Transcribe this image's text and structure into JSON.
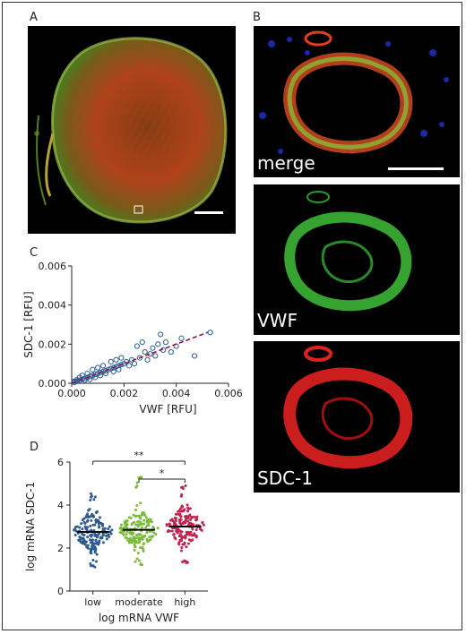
{
  "panels": {
    "a": {
      "label": "A"
    },
    "b": {
      "label": "B",
      "channels": [
        "merge",
        "VWF",
        "SDC-1"
      ]
    },
    "c": {
      "label": "C"
    },
    "d": {
      "label": "D"
    }
  },
  "chart_data": [
    {
      "panel": "C",
      "type": "scatter",
      "xlabel": "VWF [RFU]",
      "ylabel": "SDC-1 [RFU]",
      "xlim": [
        0,
        0.006
      ],
      "ylim": [
        0,
        0.006
      ],
      "xticks": [
        "0.000",
        "0.002",
        "0.004",
        "0.006"
      ],
      "yticks": [
        "0.000",
        "0.002",
        "0.004",
        "0.006"
      ],
      "fit_line": {
        "x": [
          0.0,
          0.0052
        ],
        "y": [
          0.0,
          0.0026
        ]
      },
      "points": [
        [
          0.0001,
          5e-05
        ],
        [
          0.0002,
          0.0001
        ],
        [
          0.0003,
          0.00015
        ],
        [
          0.0004,
          0.0002
        ],
        [
          0.0005,
          0.00025
        ],
        [
          0.0006,
          0.0003
        ],
        [
          0.0007,
          0.00035
        ],
        [
          0.0008,
          0.0004
        ],
        [
          0.0009,
          0.00045
        ],
        [
          0.001,
          0.0005
        ],
        [
          0.0011,
          0.00055
        ],
        [
          0.0012,
          0.0006
        ],
        [
          0.0013,
          0.00065
        ],
        [
          0.0014,
          0.0007
        ],
        [
          0.0015,
          0.00075
        ],
        [
          0.0016,
          0.0008
        ],
        [
          0.0017,
          0.00085
        ],
        [
          0.0018,
          0.0009
        ],
        [
          0.0019,
          0.00095
        ],
        [
          0.002,
          0.001
        ],
        [
          0.0004,
          0.0004
        ],
        [
          0.0006,
          0.0005
        ],
        [
          0.0008,
          0.0007
        ],
        [
          0.001,
          0.0008
        ],
        [
          0.0012,
          0.0009
        ],
        [
          0.0005,
          0.00015
        ],
        [
          0.0007,
          0.0002
        ],
        [
          0.0009,
          0.0003
        ],
        [
          0.0011,
          0.0004
        ],
        [
          0.0013,
          0.0005
        ],
        [
          0.0015,
          0.0011
        ],
        [
          0.0017,
          0.0012
        ],
        [
          0.0019,
          0.0013
        ],
        [
          0.0021,
          0.0011
        ],
        [
          0.0023,
          0.0012
        ],
        [
          0.0022,
          0.0009
        ],
        [
          0.0024,
          0.001
        ],
        [
          0.0026,
          0.0013
        ],
        [
          0.0028,
          0.0016
        ],
        [
          0.003,
          0.0015
        ],
        [
          0.0025,
          0.0019
        ],
        [
          0.0027,
          0.0021
        ],
        [
          0.0031,
          0.0018
        ],
        [
          0.0033,
          0.002
        ],
        [
          0.0035,
          0.0017
        ],
        [
          0.0029,
          0.0012
        ],
        [
          0.0032,
          0.0014
        ],
        [
          0.0036,
          0.0021
        ],
        [
          0.0038,
          0.0016
        ],
        [
          0.0034,
          0.0025
        ],
        [
          0.004,
          0.0019
        ],
        [
          0.0042,
          0.0023
        ],
        [
          0.0047,
          0.0014
        ],
        [
          0.0053,
          0.0026
        ],
        [
          0.0003,
          0.0003
        ],
        [
          0.0002,
          0.00018
        ],
        [
          0.00015,
          0.0001
        ],
        [
          0.0001,
          0.0001
        ],
        [
          0.0018,
          0.0007
        ],
        [
          0.0016,
          0.0006
        ]
      ]
    },
    {
      "panel": "D",
      "type": "scatter",
      "xlabel": "log mRNA VWF",
      "ylabel": "log mRNA SDC-1",
      "ylim": [
        0,
        6
      ],
      "yticks": [
        "0",
        "2",
        "4",
        "6"
      ],
      "categories": [
        "low",
        "moderate",
        "high"
      ],
      "colors": [
        "#2f5a8f",
        "#7dbb3c",
        "#c0234e"
      ],
      "medians": [
        2.75,
        2.85,
        3.0
      ],
      "spreads": [
        [
          1.0,
          4.6
        ],
        [
          1.2,
          5.3
        ],
        [
          1.3,
          4.9
        ]
      ],
      "significance": [
        {
          "from": "low",
          "to": "high",
          "label": "**"
        },
        {
          "from": "moderate",
          "to": "high",
          "label": "*"
        }
      ]
    }
  ]
}
